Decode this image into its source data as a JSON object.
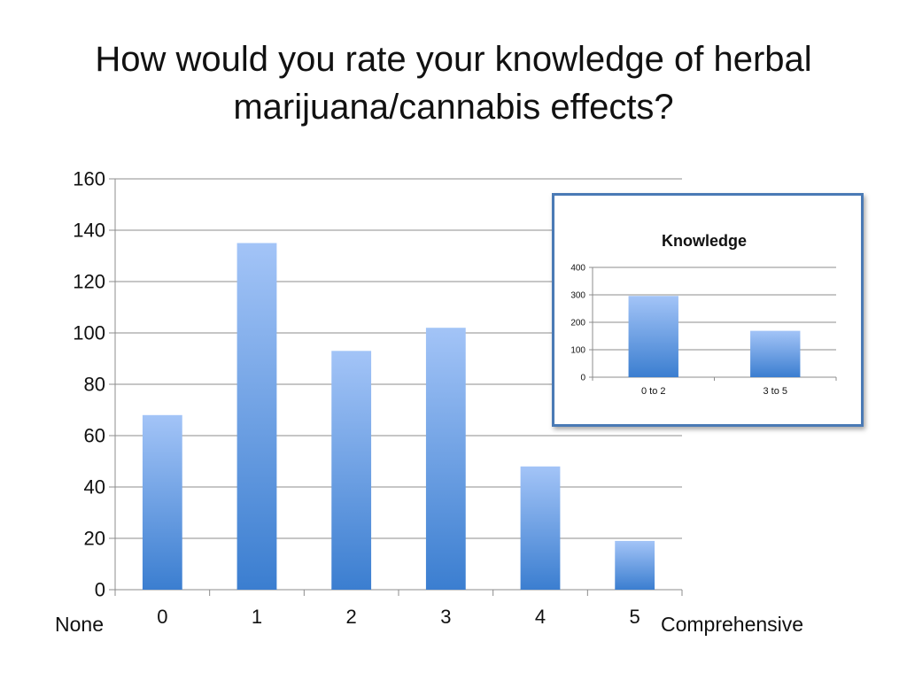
{
  "slide": {
    "title_line1": "How would you rate your knowledge of herbal",
    "title_line2": "marijuana/cannabis effects?",
    "left_end_label": "None",
    "right_end_label": "Comprehensive"
  },
  "colors": {
    "bar_top": "#a3c4f7",
    "bar_bottom": "#3b7ed0",
    "grid": "#8c8c8c",
    "frame": "#4a7ab5"
  },
  "chart_data": [
    {
      "type": "bar",
      "categories": [
        "0",
        "1",
        "2",
        "3",
        "4",
        "5"
      ],
      "values": [
        68,
        135,
        93,
        102,
        48,
        19
      ],
      "ylim": [
        0,
        160
      ],
      "yticks": [
        0,
        20,
        40,
        60,
        80,
        100,
        120,
        140,
        160
      ],
      "grid": true,
      "legend": "none"
    },
    {
      "type": "bar",
      "title": "Knowledge",
      "categories": [
        "0 to 2",
        "3 to 5"
      ],
      "values": [
        296,
        169
      ],
      "ylim": [
        0,
        400
      ],
      "yticks": [
        0,
        100,
        200,
        300,
        400
      ],
      "grid": true,
      "legend": "none"
    }
  ]
}
